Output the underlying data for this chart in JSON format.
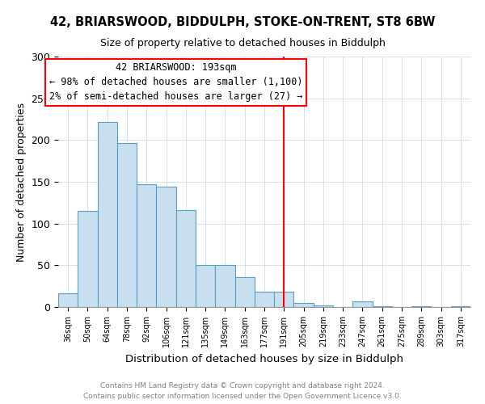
{
  "title": "42, BRIARSWOOD, BIDDULPH, STOKE-ON-TRENT, ST8 6BW",
  "subtitle": "Size of property relative to detached houses in Biddulph",
  "xlabel": "Distribution of detached houses by size in Biddulph",
  "ylabel": "Number of detached properties",
  "footer_line1": "Contains HM Land Registry data © Crown copyright and database right 2024.",
  "footer_line2": "Contains public sector information licensed under the Open Government Licence v3.0.",
  "bin_labels": [
    "36sqm",
    "50sqm",
    "64sqm",
    "78sqm",
    "92sqm",
    "106sqm",
    "121sqm",
    "135sqm",
    "149sqm",
    "163sqm",
    "177sqm",
    "191sqm",
    "205sqm",
    "219sqm",
    "233sqm",
    "247sqm",
    "261sqm",
    "275sqm",
    "289sqm",
    "303sqm",
    "317sqm"
  ],
  "bar_values": [
    16,
    115,
    222,
    196,
    147,
    144,
    116,
    50,
    50,
    36,
    18,
    18,
    5,
    2,
    0,
    7,
    1,
    0,
    1,
    0,
    1
  ],
  "bar_color": "#c8dff0",
  "bar_edge_color": "#5a9ec4",
  "vline_x": 11,
  "vline_color": "red",
  "annotation_title": "42 BRIARSWOOD: 193sqm",
  "annotation_line1": "← 98% of detached houses are smaller (1,100)",
  "annotation_line2": "2% of semi-detached houses are larger (27) →",
  "annotation_box_color": "white",
  "annotation_box_edge": "red",
  "ylim": [
    0,
    300
  ],
  "yticks": [
    0,
    50,
    100,
    150,
    200,
    250,
    300
  ]
}
